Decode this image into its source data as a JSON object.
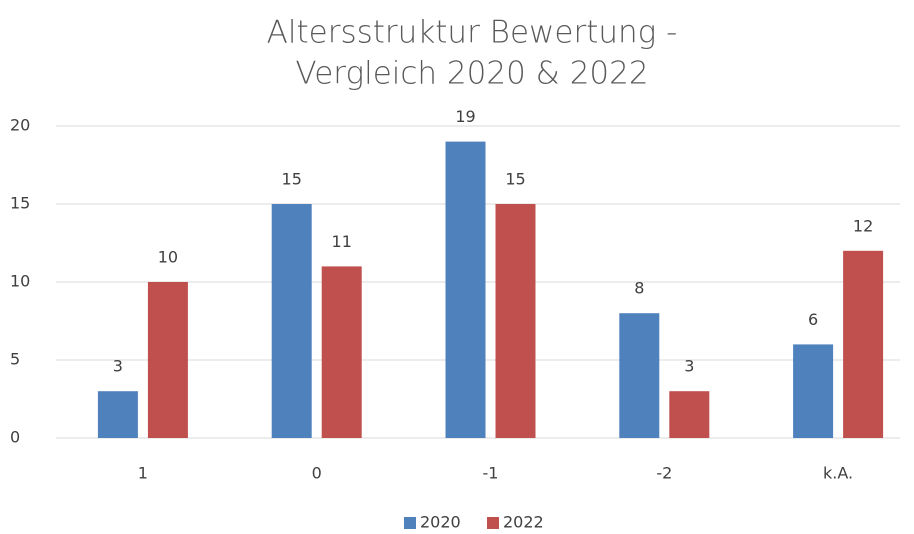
{
  "chart_data": {
    "type": "bar",
    "title": [
      "Altersstruktur Bewertung -",
      "Vergleich 2020 & 2022"
    ],
    "categories": [
      "1",
      "0",
      "-1",
      "-2",
      "k.A."
    ],
    "series": [
      {
        "name": "2020",
        "color": "#4f81bd",
        "values": [
          3,
          15,
          19,
          8,
          6
        ]
      },
      {
        "name": "2022",
        "color": "#c0504d",
        "values": [
          10,
          11,
          15,
          3,
          12
        ]
      }
    ],
    "ylim": [
      0,
      20
    ],
    "yticks": [
      0,
      5,
      10,
      15,
      20
    ],
    "grid": true,
    "legend": "bottom"
  }
}
